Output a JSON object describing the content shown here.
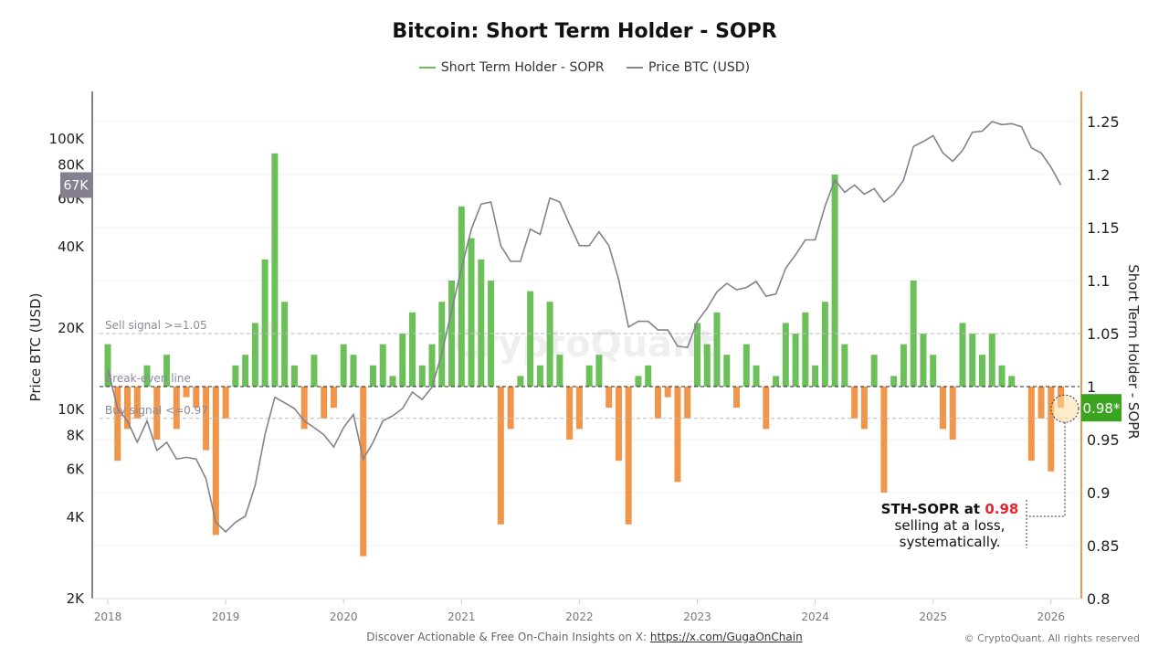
{
  "chart_data": {
    "type": "bar+line",
    "title": "Bitcoin: Short Term Holder - SOPR",
    "legend": [
      {
        "name": "Short Term Holder - SOPR",
        "color": "#6cc05a"
      },
      {
        "name": "Price BTC (USD)",
        "color": "#85808f"
      }
    ],
    "legend_placement": "top",
    "ylabel_left": "Price BTC (USD)",
    "ylabel_right": "Short Term Holder - SOPR",
    "y_left_scale": "log",
    "y_left_range": [
      2000,
      150000
    ],
    "y_left_ticks": [
      "2K",
      "4K",
      "6K",
      "8K",
      "10K",
      "20K",
      "40K",
      "60K",
      "80K",
      "100K"
    ],
    "y_left_tick_values": [
      2000,
      4000,
      6000,
      8000,
      10000,
      20000,
      40000,
      60000,
      80000,
      100000
    ],
    "y_right_range": [
      0.8,
      1.28
    ],
    "y_right_ticks": [
      "0.8",
      "0.85",
      "0.9",
      "0.95",
      "1",
      "1.05",
      "1.1",
      "1.15",
      "1.2",
      "1.25"
    ],
    "x_ticks": [
      "2018",
      "2019",
      "2020",
      "2021",
      "2022",
      "2023",
      "2024",
      "2025",
      "2026"
    ],
    "x_start": "2018-01",
    "x_step": "month",
    "price": [
      14000,
      10000,
      9000,
      7500,
      9000,
      7000,
      7500,
      6500,
      6600,
      6500,
      5500,
      3800,
      3500,
      3800,
      4000,
      5200,
      8000,
      11000,
      10500,
      10000,
      9000,
      8500,
      8000,
      7200,
      8500,
      9500,
      6500,
      7500,
      9000,
      9400,
      10000,
      11500,
      10800,
      12000,
      16000,
      23000,
      33000,
      46000,
      57000,
      58000,
      40000,
      35000,
      35000,
      46000,
      44000,
      60000,
      58000,
      48000,
      40000,
      40000,
      45000,
      40000,
      30000,
      20000,
      21000,
      21000,
      19500,
      19500,
      17000,
      16800,
      21000,
      23500,
      27000,
      29000,
      27500,
      28000,
      29500,
      26000,
      26500,
      33000,
      37000,
      42000,
      42000,
      56000,
      70000,
      63000,
      67000,
      62000,
      65000,
      58000,
      62000,
      70000,
      93000,
      97000,
      102000,
      88000,
      82000,
      90000,
      105000,
      106000,
      115000,
      112000,
      113000,
      110000,
      92000,
      88000,
      78000,
      67000
    ],
    "sopr": [
      1.04,
      0.93,
      0.96,
      0.97,
      1.02,
      0.95,
      1.03,
      0.96,
      0.99,
      0.98,
      0.94,
      0.86,
      0.97,
      1.02,
      1.03,
      1.06,
      1.12,
      1.22,
      1.08,
      1.02,
      0.96,
      1.03,
      0.97,
      0.98,
      1.04,
      1.03,
      0.84,
      1.02,
      1.04,
      1.01,
      1.05,
      1.07,
      1.02,
      1.04,
      1.08,
      1.1,
      1.17,
      1.14,
      1.12,
      1.1,
      0.87,
      0.96,
      1.01,
      1.09,
      1.02,
      1.08,
      1.03,
      0.95,
      0.96,
      1.02,
      1.03,
      0.98,
      0.93,
      0.87,
      1.01,
      1.02,
      0.97,
      0.99,
      0.91,
      0.97,
      1.06,
      1.04,
      1.07,
      1.03,
      0.98,
      1.04,
      1.02,
      0.96,
      1.01,
      1.06,
      1.05,
      1.07,
      1.02,
      1.08,
      1.2,
      1.04,
      0.97,
      0.96,
      1.03,
      0.9,
      1.01,
      1.04,
      1.1,
      1.05,
      1.03,
      0.96,
      0.95,
      1.06,
      1.05,
      1.03,
      1.05,
      1.02,
      1.01,
      1.0,
      0.93,
      0.97,
      0.92,
      0.98
    ],
    "reference_lines": [
      {
        "label": "Sell signal >=1.05",
        "value": 1.05
      },
      {
        "label": "Break-even line",
        "value": 1.0
      },
      {
        "label": "Buy signal <=0.97",
        "value": 0.97
      }
    ],
    "current_price_label": "67K",
    "current_sopr_label": "0.98*",
    "annotation": {
      "bold": "STH-SOPR at ",
      "value": "0.98",
      "text": "selling at a loss, systematically."
    },
    "watermark": "CryptoQuant",
    "colors": {
      "above": "#6cc05a",
      "below": "#f0954a",
      "price": "#85808f",
      "badge_sopr": "#3aa320",
      "badge_price": "#85808f"
    }
  },
  "footer": {
    "text": "Discover Actionable & Free On-Chain Insights on X: ",
    "link": "https://x.com/GugaOnChain",
    "copyright": "© CryptoQuant. All rights reserved"
  }
}
